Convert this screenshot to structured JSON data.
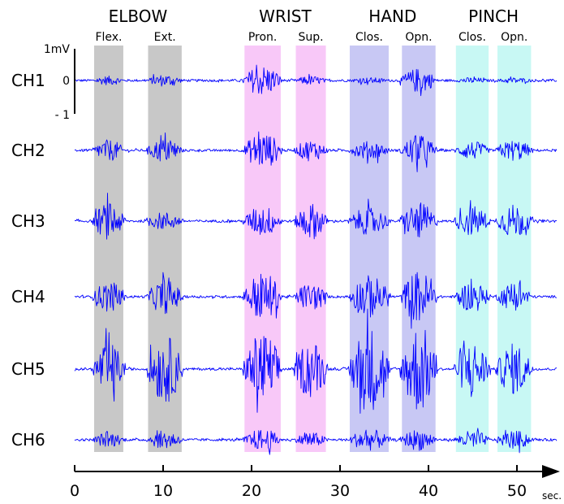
{
  "chart_data": {
    "type": "line",
    "x_unit": "sec.",
    "xlim": [
      0,
      55
    ],
    "x_ticks": [
      0,
      10,
      20,
      30,
      40,
      50
    ],
    "scale_bar": {
      "top_label": "1mV",
      "zero_label": "0",
      "bottom_label": "- 1"
    },
    "channels": [
      {
        "name": "CH1",
        "amp": [
          0.15,
          0.2,
          0.5,
          0.15,
          0.1,
          0.4,
          0.1,
          0.1
        ]
      },
      {
        "name": "CH2",
        "amp": [
          0.35,
          0.4,
          0.6,
          0.35,
          0.3,
          0.5,
          0.3,
          0.35
        ]
      },
      {
        "name": "CH3",
        "amp": [
          0.6,
          0.3,
          0.5,
          0.6,
          0.45,
          0.6,
          0.5,
          0.55
        ]
      },
      {
        "name": "CH4",
        "amp": [
          0.5,
          0.55,
          0.8,
          0.45,
          0.7,
          0.85,
          0.5,
          0.45
        ]
      },
      {
        "name": "CH5",
        "amp": [
          0.85,
          1.1,
          1.2,
          0.95,
          1.4,
          1.45,
          0.9,
          0.85
        ]
      },
      {
        "name": "CH6",
        "amp": [
          0.25,
          0.3,
          0.35,
          0.25,
          0.35,
          0.35,
          0.3,
          0.3
        ]
      }
    ],
    "groups": [
      {
        "label": "ELBOW",
        "movements": [
          {
            "label": "Flex.",
            "start": 2.2,
            "end": 5.5,
            "color": "#c8c8c8"
          },
          {
            "label": "Ext.",
            "start": 8.3,
            "end": 12.1,
            "color": "#c8c8c8"
          }
        ]
      },
      {
        "label": "WRIST",
        "movements": [
          {
            "label": "Pron.",
            "start": 19.2,
            "end": 23.3,
            "color": "#f8c8f8"
          },
          {
            "label": "Sup.",
            "start": 25.0,
            "end": 28.4,
            "color": "#f8c8f8"
          }
        ]
      },
      {
        "label": "HAND",
        "movements": [
          {
            "label": "Clos.",
            "start": 31.1,
            "end": 35.5,
            "color": "#c8c8f4"
          },
          {
            "label": "Opn.",
            "start": 37.0,
            "end": 40.8,
            "color": "#c8c8f4"
          }
        ]
      },
      {
        "label": "PINCH",
        "movements": [
          {
            "label": "Clos.",
            "start": 43.1,
            "end": 46.8,
            "color": "#c8f8f4"
          },
          {
            "label": "Opn.",
            "start": 47.8,
            "end": 51.6,
            "color": "#c8f8f4"
          }
        ]
      }
    ],
    "trace_color": "#0000ff"
  }
}
